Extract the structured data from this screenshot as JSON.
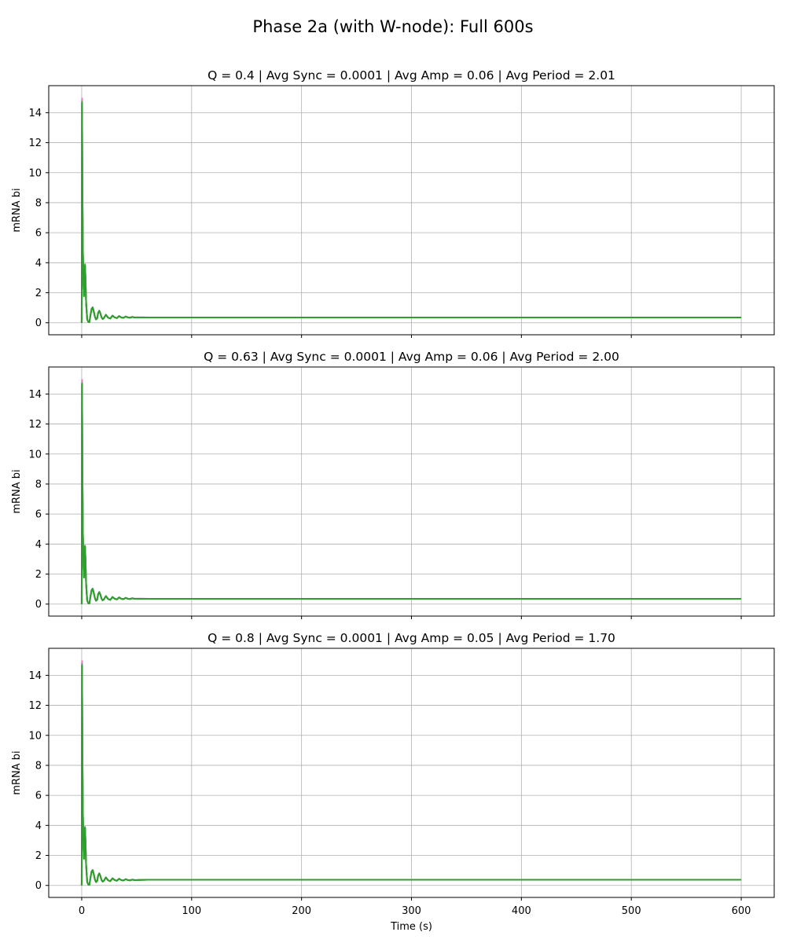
{
  "figure": {
    "suptitle": "Phase 2a (with W-node): Full 600s"
  },
  "chart_data": [
    {
      "type": "line",
      "title": "Q = 0.4 | Avg Sync = 0.0001 | Avg Amp = 0.06 | Avg Period = 2.01",
      "xlabel": "",
      "ylabel": "mRNA bi",
      "xlim": [
        -30,
        630
      ],
      "ylim": [
        -0.8,
        15.8
      ],
      "xticks": [
        0,
        100,
        200,
        300,
        400,
        500,
        600
      ],
      "xtick_labels_shown": false,
      "yticks": [
        0,
        2,
        4,
        6,
        8,
        10,
        12,
        14
      ],
      "grid": true,
      "steady_state": 0.35,
      "series_colors": [
        "#e377c2",
        "#17becf",
        "#bcbd22",
        "#7f7f7f",
        "#2ca02c"
      ],
      "series_peaks": [
        15.05,
        14.8,
        14.7,
        14.85,
        14.75
      ],
      "x": [
        0,
        0.1,
        0.3,
        0.5,
        0.8,
        1.1,
        1.5,
        2,
        2.5,
        3,
        3.5,
        4,
        5,
        6,
        7,
        8,
        9,
        10,
        11,
        12,
        13,
        14,
        15,
        16,
        17,
        18,
        19,
        20,
        22,
        24,
        26,
        28,
        30,
        32,
        34,
        36,
        38,
        40,
        42,
        44,
        46,
        48,
        50,
        55,
        60,
        80,
        100,
        200,
        300,
        400,
        500,
        600
      ],
      "shape": [
        0,
        0.3,
        0.993,
        0.75,
        0.5,
        0.32,
        0.2,
        0.12,
        0.16,
        0.26,
        0.19,
        0.09,
        0.015,
        0.004,
        0.003,
        0.035,
        0.063,
        0.069,
        0.05,
        0.027,
        0.015,
        0.019,
        0.045,
        0.054,
        0.042,
        0.025,
        0.017,
        0.02,
        0.036,
        0.023,
        0.019,
        0.032,
        0.024,
        0.021,
        0.03,
        0.024,
        0.022,
        0.028,
        0.024,
        0.023,
        0.026,
        0.024,
        0.024,
        0.024,
        0.024,
        0.024,
        0.024,
        0.024,
        0.024,
        0.024,
        0.024,
        0.024
      ]
    },
    {
      "type": "line",
      "title": "Q = 0.63 | Avg Sync = 0.0001 | Avg Amp = 0.06 | Avg Period = 2.00",
      "xlabel": "",
      "ylabel": "mRNA bi",
      "xlim": [
        -30,
        630
      ],
      "ylim": [
        -0.8,
        15.8
      ],
      "xticks": [
        0,
        100,
        200,
        300,
        400,
        500,
        600
      ],
      "xtick_labels_shown": false,
      "yticks": [
        0,
        2,
        4,
        6,
        8,
        10,
        12,
        14
      ],
      "grid": true,
      "steady_state": 0.35,
      "series_colors": [
        "#e377c2",
        "#17becf",
        "#bcbd22",
        "#7f7f7f",
        "#2ca02c"
      ],
      "series_peaks": [
        15.05,
        14.8,
        14.7,
        14.85,
        14.75
      ],
      "x": [
        0,
        0.1,
        0.3,
        0.5,
        0.8,
        1.1,
        1.5,
        2,
        2.5,
        3,
        3.5,
        4,
        5,
        6,
        7,
        8,
        9,
        10,
        11,
        12,
        13,
        14,
        15,
        16,
        17,
        18,
        19,
        20,
        22,
        24,
        26,
        28,
        30,
        32,
        34,
        36,
        38,
        40,
        42,
        44,
        46,
        48,
        50,
        55,
        60,
        80,
        100,
        200,
        300,
        400,
        500,
        600
      ],
      "shape": [
        0,
        0.3,
        0.993,
        0.75,
        0.5,
        0.32,
        0.2,
        0.12,
        0.16,
        0.26,
        0.19,
        0.09,
        0.015,
        0.004,
        0.003,
        0.035,
        0.063,
        0.069,
        0.05,
        0.027,
        0.015,
        0.019,
        0.045,
        0.054,
        0.042,
        0.025,
        0.017,
        0.02,
        0.036,
        0.023,
        0.019,
        0.032,
        0.024,
        0.021,
        0.03,
        0.024,
        0.022,
        0.028,
        0.024,
        0.023,
        0.026,
        0.024,
        0.024,
        0.024,
        0.024,
        0.024,
        0.024,
        0.024,
        0.024,
        0.024,
        0.024,
        0.024
      ]
    },
    {
      "type": "line",
      "title": "Q = 0.8 | Avg Sync = 0.0001 | Avg Amp = 0.05 | Avg Period = 1.70",
      "xlabel": "Time (s)",
      "ylabel": "mRNA bi",
      "xlim": [
        -30,
        630
      ],
      "ylim": [
        -0.8,
        15.8
      ],
      "xticks": [
        0,
        100,
        200,
        300,
        400,
        500,
        600
      ],
      "xtick_labels_shown": true,
      "yticks": [
        0,
        2,
        4,
        6,
        8,
        10,
        12,
        14
      ],
      "grid": true,
      "steady_state": 0.38,
      "series_colors": [
        "#e377c2",
        "#17becf",
        "#bcbd22",
        "#7f7f7f",
        "#2ca02c"
      ],
      "series_peaks": [
        15.05,
        14.8,
        14.7,
        14.85,
        14.75
      ],
      "x": [
        0,
        0.1,
        0.3,
        0.5,
        0.8,
        1.1,
        1.5,
        2,
        2.5,
        3,
        3.5,
        4,
        5,
        6,
        7,
        8,
        9,
        10,
        11,
        12,
        13,
        14,
        15,
        16,
        17,
        18,
        19,
        20,
        22,
        24,
        26,
        28,
        30,
        32,
        34,
        36,
        38,
        40,
        42,
        44,
        46,
        48,
        50,
        55,
        60,
        80,
        100,
        200,
        300,
        400,
        500,
        600
      ],
      "shape": [
        0,
        0.3,
        0.993,
        0.75,
        0.5,
        0.32,
        0.2,
        0.12,
        0.16,
        0.26,
        0.19,
        0.09,
        0.015,
        0.004,
        0.003,
        0.035,
        0.063,
        0.069,
        0.05,
        0.027,
        0.015,
        0.019,
        0.045,
        0.054,
        0.042,
        0.025,
        0.017,
        0.02,
        0.036,
        0.023,
        0.019,
        0.032,
        0.024,
        0.021,
        0.03,
        0.024,
        0.022,
        0.028,
        0.024,
        0.023,
        0.026,
        0.024,
        0.024,
        0.025,
        0.025,
        0.025,
        0.025,
        0.025,
        0.025,
        0.025,
        0.025,
        0.025
      ]
    }
  ]
}
